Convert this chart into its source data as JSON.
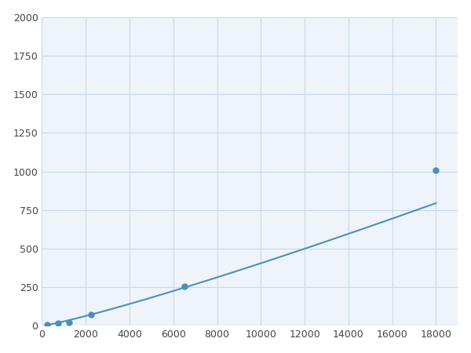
{
  "x": [
    250,
    750,
    1250,
    2250,
    6500,
    18000
  ],
  "y": [
    10,
    16,
    22,
    75,
    255,
    1010
  ],
  "line_color": "#4a90b8",
  "marker_color": "#4a90b8",
  "marker_size": 5,
  "line_width": 1.5,
  "xlim": [
    0,
    19000
  ],
  "ylim": [
    0,
    2000
  ],
  "xticks": [
    0,
    2000,
    4000,
    6000,
    8000,
    10000,
    12000,
    14000,
    16000,
    18000
  ],
  "yticks": [
    0,
    250,
    500,
    750,
    1000,
    1250,
    1500,
    1750,
    2000
  ],
  "grid_color": "#c8d8e8",
  "background_color": "#ffffff",
  "plot_bg_color": "#eef4fa",
  "figsize": [
    6.0,
    4.5
  ],
  "dpi": 100
}
